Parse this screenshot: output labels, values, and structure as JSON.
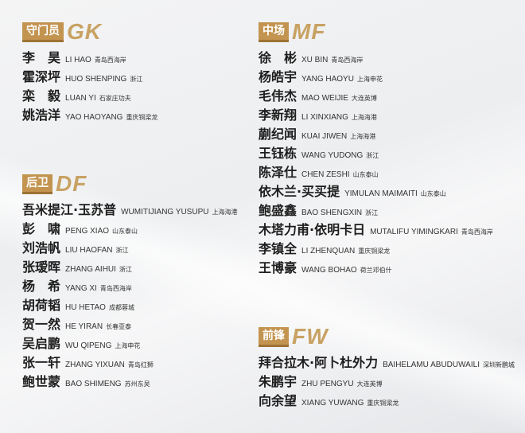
{
  "sections": [
    {
      "key": "gk",
      "label": "守门员",
      "code": "GK",
      "players": [
        {
          "cn": "李　昊",
          "py": "LI HAO",
          "club": "青岛西海岸"
        },
        {
          "cn": "霍深坪",
          "py": "HUO SHENPING",
          "club": "浙江"
        },
        {
          "cn": "栾　毅",
          "py": "LUAN YI",
          "club": "石家庄功夫"
        },
        {
          "cn": "姚浩洋",
          "py": "YAO HAOYANG",
          "club": "重庆铜梁龙"
        }
      ]
    },
    {
      "key": "df",
      "label": "后卫",
      "code": "DF",
      "players": [
        {
          "cn": "吾米提江·玉苏普",
          "py": "WUMITIJIANG YUSUPU",
          "club": "上海海港"
        },
        {
          "cn": "彭　啸",
          "py": "PENG XIAO",
          "club": "山东泰山"
        },
        {
          "cn": "刘浩帆",
          "py": "LIU HAOFAN",
          "club": "浙江"
        },
        {
          "cn": "张瑷晖",
          "py": "ZHANG AIHUI",
          "club": "浙江"
        },
        {
          "cn": "杨　希",
          "py": "YANG XI",
          "club": "青岛西海岸"
        },
        {
          "cn": "胡荷韬",
          "py": "HU HETAO",
          "club": "成都蓉城"
        },
        {
          "cn": "贺一然",
          "py": "HE YIRAN",
          "club": "长春亚泰"
        },
        {
          "cn": "吴启鹏",
          "py": "WU QIPENG",
          "club": "上海申花"
        },
        {
          "cn": "张一轩",
          "py": "ZHANG YIXUAN",
          "club": "青岛红狮"
        },
        {
          "cn": "鲍世蒙",
          "py": "BAO SHIMENG",
          "club": "苏州东吴"
        }
      ]
    },
    {
      "key": "mf",
      "label": "中场",
      "code": "MF",
      "players": [
        {
          "cn": "徐　彬",
          "py": "XU BIN",
          "club": "青岛西海岸"
        },
        {
          "cn": "杨皓宇",
          "py": "YANG HAOYU",
          "club": "上海申花"
        },
        {
          "cn": "毛伟杰",
          "py": "MAO WEIJIE",
          "club": "大连英博"
        },
        {
          "cn": "李新翔",
          "py": "LI XINXIANG",
          "club": "上海海港"
        },
        {
          "cn": "蒯纪闻",
          "py": "KUAI JIWEN",
          "club": "上海海港"
        },
        {
          "cn": "王钰栋",
          "py": "WANG YUDONG",
          "club": "浙江"
        },
        {
          "cn": "陈泽仕",
          "py": "CHEN ZESHI",
          "club": "山东泰山"
        },
        {
          "cn": "依木兰·买买提",
          "py": "YIMULAN MAIMAITI",
          "club": "山东泰山"
        },
        {
          "cn": "鲍盛鑫",
          "py": "BAO SHENGXIN",
          "club": "浙江"
        },
        {
          "cn": "木塔力甫·依明卡日",
          "py": "MUTALIFU YIMINGKARI",
          "club": "青岛西海岸"
        },
        {
          "cn": "李镇全",
          "py": "LI ZHENQUAN",
          "club": "重庆铜梁龙"
        },
        {
          "cn": "王博豪",
          "py": "WANG BOHAO",
          "club": "荷兰邓伯什"
        }
      ]
    },
    {
      "key": "fw",
      "label": "前锋",
      "code": "FW",
      "players": [
        {
          "cn": "拜合拉木·阿卜杜外力",
          "py": "BAIHELAMU ABUDUWAILI",
          "club": "深圳新鹏城"
        },
        {
          "cn": "朱鹏宇",
          "py": "ZHU PENGYU",
          "club": "大连英博"
        },
        {
          "cn": "向余望",
          "py": "XIANG YUWANG",
          "club": "重庆铜梁龙"
        }
      ]
    }
  ]
}
